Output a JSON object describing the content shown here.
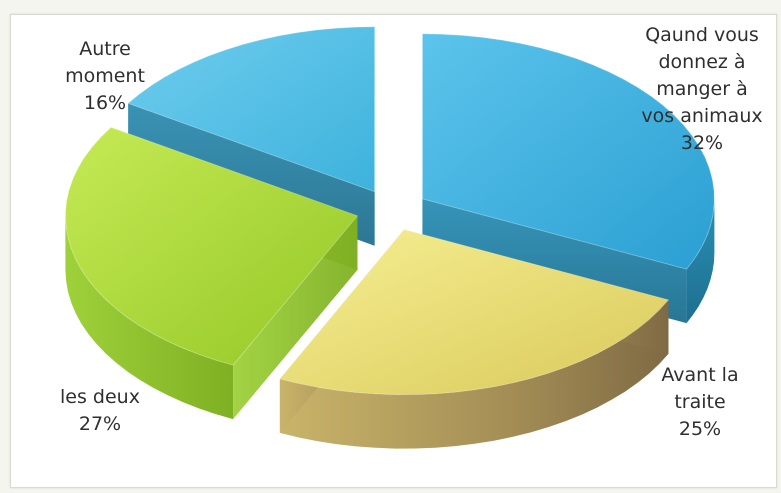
{
  "chart_data": {
    "type": "pie",
    "title": "",
    "exploded": true,
    "three_d": true,
    "slices": [
      {
        "label": "Qaund vous\ndonnez à\nmanger à\nvos animaux",
        "value": 32,
        "value_label": "32%",
        "color": "#35aede"
      },
      {
        "label": "Avant la\ntraite",
        "value": 25,
        "value_label": "25%",
        "color": "#e9dc6c"
      },
      {
        "label": "les deux",
        "value": 27,
        "value_label": "27%",
        "color": "#a8d83a"
      },
      {
        "label": "Autre\nmoment",
        "value": 16,
        "value_label": "16%",
        "color": "#4cbce0"
      }
    ]
  }
}
